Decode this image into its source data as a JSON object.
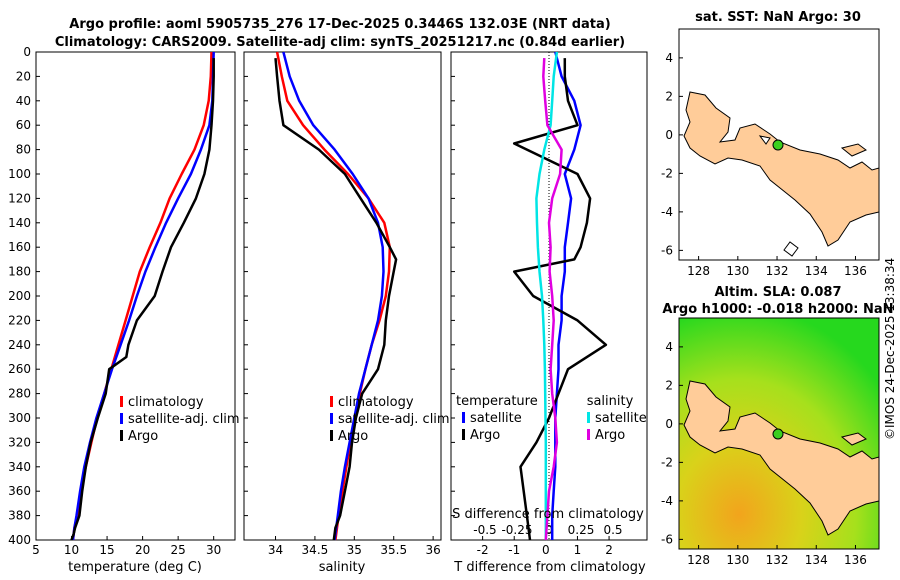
{
  "titles": {
    "line1": "Argo profile: aoml 5905735_276 17-Dec-2025 0.3446S 132.03E (NRT data)",
    "line2": "Climatology: CARS2009. Satellite-adj clim: synTS_20251217.nc (0.84d earlier)"
  },
  "colors": {
    "climatology": "#ff0000",
    "satellite": "#0000ff",
    "argo": "#000000",
    "sat_salinity": "#00e5e5",
    "argo_salinity": "#e000e0",
    "land": "#ffcc99",
    "sla_green": "#3ccf20"
  },
  "watermark": "©IMOS 24-Dec-2025 13:38:34",
  "chart_data": [
    {
      "type": "line",
      "name": "temperature",
      "xlabel": "temperature (deg C)",
      "ylabel": "",
      "xlim": [
        5,
        33
      ],
      "ylim": [
        400,
        0
      ],
      "xticks": [
        "5",
        "10",
        "15",
        "20",
        "25",
        "30"
      ],
      "xtick_values": [
        5,
        10,
        15,
        20,
        25,
        30
      ],
      "yticks": [
        "0",
        "20",
        "40",
        "60",
        "80",
        "100",
        "120",
        "140",
        "160",
        "180",
        "200",
        "220",
        "240",
        "260",
        "280",
        "300",
        "320",
        "340",
        "360",
        "380",
        "400"
      ],
      "ytick_values": [
        0,
        20,
        40,
        60,
        80,
        100,
        120,
        140,
        160,
        180,
        200,
        220,
        240,
        260,
        280,
        300,
        320,
        340,
        360,
        380,
        400
      ],
      "legend": [
        "climatology",
        "satellite-adj. clim",
        "Argo"
      ],
      "series": [
        {
          "name": "climatology",
          "color": "#ff0000",
          "x": [
            29.7,
            29.6,
            29.3,
            28.6,
            27.3,
            25.5,
            23.8,
            22.5,
            21,
            19.6,
            18.6,
            17.6,
            16.6,
            15.6,
            14.6,
            13.6,
            12.8,
            12,
            11.3,
            10.8,
            10.4,
            10.2
          ],
          "y": [
            0,
            20,
            40,
            60,
            80,
            100,
            120,
            140,
            160,
            180,
            200,
            220,
            240,
            260,
            280,
            300,
            320,
            340,
            360,
            380,
            390,
            400
          ]
        },
        {
          "name": "satellite-adj. clim",
          "color": "#0000ff",
          "x": [
            30,
            29.9,
            29.8,
            29.4,
            28.2,
            26.8,
            25,
            23.3,
            21.8,
            20.4,
            19.2,
            18.1,
            16.9,
            15.7,
            14.6,
            13.5,
            12.6,
            11.8,
            11.2,
            10.7,
            10.4,
            10.2
          ],
          "y": [
            0,
            20,
            40,
            60,
            80,
            100,
            120,
            140,
            160,
            180,
            200,
            220,
            240,
            260,
            280,
            300,
            320,
            340,
            360,
            380,
            390,
            400
          ]
        },
        {
          "name": "Argo",
          "color": "#000000",
          "x": [
            30,
            30,
            29.9,
            29.7,
            29.4,
            28.7,
            27.5,
            25.8,
            24,
            22.8,
            21.7,
            19.2,
            18,
            17.7,
            15.3,
            14.8,
            13.7,
            12.7,
            12,
            11.5,
            11.1,
            10.5,
            10.3,
            10
          ],
          "y": [
            5,
            20,
            40,
            60,
            80,
            100,
            120,
            140,
            160,
            180,
            200,
            220,
            240,
            250,
            260,
            280,
            300,
            320,
            340,
            360,
            380,
            390,
            395,
            400
          ]
        }
      ]
    },
    {
      "type": "line",
      "name": "salinity",
      "xlabel": "salinity",
      "xlim": [
        33.6,
        36.1
      ],
      "ylim": [
        400,
        0
      ],
      "xticks": [
        "34",
        "34.5",
        "35",
        "35.5",
        "36"
      ],
      "xtick_values": [
        34,
        34.5,
        35,
        35.5,
        36
      ],
      "legend": [
        "climatology",
        "satellite-adj. clim",
        "Argo"
      ],
      "series": [
        {
          "name": "climatology",
          "color": "#ff0000",
          "x": [
            34.02,
            34.08,
            34.15,
            34.35,
            34.62,
            34.92,
            35.18,
            35.38,
            35.45,
            35.44,
            35.4,
            35.32,
            35.22,
            35.14,
            35.07,
            35.01,
            34.95,
            34.9,
            34.85,
            34.8,
            34.78,
            34.76
          ],
          "y": [
            0,
            20,
            40,
            60,
            80,
            100,
            120,
            140,
            160,
            180,
            200,
            220,
            240,
            260,
            280,
            300,
            320,
            340,
            360,
            380,
            390,
            400
          ]
        },
        {
          "name": "satellite-adj. clim",
          "color": "#0000ff",
          "x": [
            34.1,
            34.18,
            34.3,
            34.48,
            34.75,
            34.98,
            35.18,
            35.3,
            35.36,
            35.37,
            35.35,
            35.3,
            35.22,
            35.14,
            35.06,
            35,
            34.94,
            34.88,
            34.83,
            34.79,
            34.77,
            34.75
          ],
          "y": [
            0,
            20,
            40,
            60,
            80,
            100,
            120,
            140,
            160,
            180,
            200,
            220,
            240,
            260,
            280,
            300,
            320,
            340,
            360,
            380,
            390,
            400
          ]
        },
        {
          "name": "Argo",
          "color": "#000000",
          "x": [
            34.0,
            34.02,
            34.05,
            34.1,
            34.55,
            34.88,
            35.08,
            35.28,
            35.45,
            35.53,
            35.5,
            35.44,
            35.4,
            35.38,
            35.3,
            35.1,
            35.02,
            34.97,
            34.94,
            34.88,
            34.82,
            34.76,
            34.74
          ],
          "y": [
            5,
            20,
            40,
            60,
            80,
            100,
            120,
            140,
            160,
            170,
            180,
            200,
            220,
            240,
            260,
            280,
            300,
            320,
            340,
            360,
            380,
            390,
            400
          ]
        }
      ]
    },
    {
      "type": "line",
      "name": "difference",
      "xlabel": "T difference from climatology",
      "xlabel_top": "S difference from climatology",
      "xlim": [
        -3,
        3.2
      ],
      "ylim": [
        400,
        0
      ],
      "xticks": [
        "-2",
        "-1",
        "0",
        "1",
        "2"
      ],
      "xtick_values": [
        -2,
        -1,
        0,
        1,
        2
      ],
      "sticks": [
        "-0.5",
        "-0.25",
        "0",
        "0.25",
        "0.5"
      ],
      "stick_values": [
        -0.5,
        -0.25,
        0,
        0.25,
        0.5
      ],
      "legend_headers": [
        "temperature",
        "salinity"
      ],
      "legend": [
        "satellite",
        "Argo",
        "satellite",
        "Argo"
      ],
      "series": [
        {
          "name": "T satellite",
          "color": "#0000ff",
          "x": [
            0.3,
            0.5,
            0.9,
            1.1,
            0.9,
            0.6,
            0.8,
            0.7,
            0.6,
            0.6,
            0.5,
            0.5,
            0.4,
            0.4,
            0.35,
            0.3,
            0.3,
            0.3,
            0.25,
            0.2,
            0.2
          ],
          "y": [
            0,
            20,
            40,
            60,
            80,
            100,
            120,
            140,
            160,
            180,
            200,
            220,
            240,
            260,
            280,
            300,
            320,
            340,
            360,
            380,
            400
          ]
        },
        {
          "name": "T Argo",
          "color": "#000000",
          "x": [
            0.6,
            0.6,
            0.7,
            1.0,
            -1.0,
            1.0,
            1.4,
            1.3,
            1.1,
            0.9,
            -1.0,
            -0.4,
            1.0,
            1.9,
            0.7,
            0.4,
            0.1,
            -0.3,
            -0.8,
            -0.7,
            -0.6,
            -0.5
          ],
          "y": [
            5,
            20,
            40,
            60,
            75,
            100,
            120,
            140,
            160,
            170,
            180,
            200,
            220,
            240,
            260,
            280,
            300,
            320,
            340,
            360,
            380,
            400
          ]
        },
        {
          "name": "S satellite",
          "color": "#00e5e5",
          "x": [
            0.35,
            0.25,
            0.2,
            0.15,
            -0.05,
            -0.2,
            -0.3,
            -0.28,
            -0.25,
            -0.2,
            -0.12,
            -0.08,
            -0.05,
            -0.03,
            -0.02,
            -0.01,
            0.0,
            0.0,
            0.0,
            0.0
          ],
          "y": [
            0,
            20,
            40,
            60,
            80,
            100,
            120,
            140,
            160,
            180,
            200,
            220,
            240,
            260,
            280,
            300,
            320,
            340,
            360,
            400
          ]
        },
        {
          "name": "S Argo",
          "color": "#e000e0",
          "x": [
            -0.05,
            -0.08,
            -0.02,
            0.05,
            0.5,
            0.45,
            0.2,
            0.1,
            0.15,
            0.12,
            0.2,
            0.25,
            0.2,
            0.15,
            0.2,
            0.3,
            0.35,
            0.25,
            0.1,
            0.05,
            0.0
          ],
          "y": [
            5,
            20,
            40,
            60,
            80,
            100,
            120,
            140,
            160,
            180,
            200,
            220,
            240,
            260,
            280,
            300,
            320,
            340,
            360,
            380,
            400
          ]
        }
      ]
    },
    {
      "type": "map",
      "name": "sst",
      "title": "sat. SST: NaN Argo: 30",
      "xticks": [
        "128",
        "130",
        "132",
        "134",
        "136"
      ],
      "xtick_values": [
        128,
        130,
        132,
        134,
        136
      ],
      "yticks": [
        "4",
        "2",
        "0",
        "-2",
        "-4",
        "-6"
      ],
      "ytick_values": [
        4,
        2,
        0,
        -2,
        -4,
        -6
      ],
      "xlim": [
        127,
        137.2
      ],
      "ylim": [
        -6.5,
        5.5
      ],
      "argo_lon": 132.03,
      "argo_lat": -0.3446
    },
    {
      "type": "map",
      "name": "sla",
      "title1": "Altim. SLA: 0.087",
      "title2": "Argo h1000: -0.018 h2000: NaN",
      "xticks": [
        "128",
        "130",
        "132",
        "134",
        "136"
      ],
      "xtick_values": [
        128,
        130,
        132,
        134,
        136
      ],
      "yticks": [
        "4",
        "2",
        "0",
        "-2",
        "-4",
        "-6"
      ],
      "ytick_values": [
        4,
        2,
        0,
        -2,
        -4,
        -6
      ],
      "xlim": [
        127,
        137.2
      ],
      "ylim": [
        -6.5,
        5.5
      ],
      "argo_lon": 132.03,
      "argo_lat": -0.3446
    }
  ]
}
